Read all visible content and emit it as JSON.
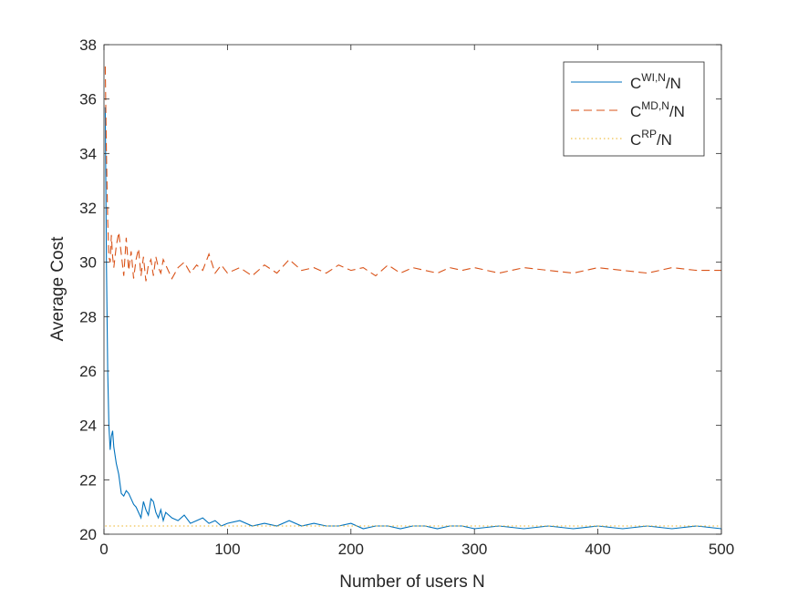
{
  "chart_data": {
    "type": "line",
    "title": "",
    "xlabel": "Number of users N",
    "ylabel": "Average Cost",
    "xlim": [
      0,
      500
    ],
    "ylim": [
      20,
      38
    ],
    "xticks": [
      0,
      100,
      200,
      300,
      400,
      500
    ],
    "yticks": [
      20,
      22,
      24,
      26,
      28,
      30,
      32,
      34,
      36,
      38
    ],
    "grid": false,
    "legend_position": "top-right",
    "series": [
      {
        "name": "C^{WI,N}/N",
        "legend": {
          "base": "C",
          "sup": "WI,N",
          "suffix": "/N"
        },
        "color": "#0072BD",
        "style": "solid",
        "x": [
          1,
          2,
          3,
          4,
          5,
          6,
          7,
          8,
          10,
          12,
          14,
          16,
          18,
          20,
          22,
          24,
          26,
          28,
          30,
          32,
          34,
          36,
          38,
          40,
          42,
          44,
          46,
          48,
          50,
          55,
          60,
          65,
          70,
          75,
          80,
          85,
          90,
          95,
          100,
          110,
          120,
          130,
          140,
          150,
          160,
          170,
          180,
          190,
          200,
          210,
          220,
          230,
          240,
          250,
          260,
          270,
          280,
          290,
          300,
          320,
          340,
          360,
          380,
          400,
          420,
          440,
          460,
          480,
          500
        ],
        "values": [
          35.7,
          30.0,
          26.0,
          24.0,
          23.1,
          23.6,
          23.8,
          23.2,
          22.6,
          22.2,
          21.5,
          21.4,
          21.6,
          21.5,
          21.3,
          21.1,
          21.0,
          20.8,
          20.6,
          21.2,
          20.9,
          20.7,
          21.3,
          21.2,
          20.8,
          20.6,
          20.9,
          20.5,
          20.8,
          20.6,
          20.5,
          20.7,
          20.4,
          20.5,
          20.6,
          20.4,
          20.5,
          20.3,
          20.4,
          20.5,
          20.3,
          20.4,
          20.3,
          20.5,
          20.3,
          20.4,
          20.3,
          20.3,
          20.4,
          20.2,
          20.3,
          20.3,
          20.2,
          20.3,
          20.3,
          20.2,
          20.3,
          20.3,
          20.2,
          20.3,
          20.2,
          20.3,
          20.2,
          20.3,
          20.2,
          20.3,
          20.2,
          20.3,
          20.2
        ]
      },
      {
        "name": "C^{MD,N}/N",
        "legend": {
          "base": "C",
          "sup": "MD,N",
          "suffix": "/N"
        },
        "color": "#D95319",
        "style": "dashed",
        "x": [
          1,
          2,
          3,
          4,
          5,
          6,
          7,
          8,
          10,
          12,
          14,
          16,
          18,
          20,
          22,
          24,
          26,
          28,
          30,
          32,
          34,
          36,
          38,
          40,
          42,
          44,
          46,
          48,
          50,
          55,
          60,
          65,
          70,
          75,
          80,
          85,
          90,
          95,
          100,
          110,
          120,
          130,
          140,
          150,
          160,
          170,
          180,
          190,
          200,
          210,
          220,
          230,
          240,
          250,
          260,
          270,
          280,
          290,
          300,
          320,
          340,
          360,
          380,
          400,
          420,
          440,
          460,
          480,
          500
        ],
        "values": [
          37.2,
          34.0,
          31.5,
          30.2,
          30.0,
          31.0,
          30.2,
          29.8,
          30.6,
          31.1,
          30.3,
          29.5,
          30.9,
          29.7,
          30.4,
          29.4,
          30.1,
          30.5,
          29.5,
          30.2,
          29.3,
          29.9,
          30.1,
          29.5,
          30.2,
          29.8,
          29.6,
          30.1,
          29.9,
          29.4,
          29.8,
          30.0,
          29.6,
          29.9,
          29.7,
          30.3,
          29.6,
          29.9,
          29.6,
          29.8,
          29.5,
          29.9,
          29.6,
          30.1,
          29.7,
          29.8,
          29.6,
          29.9,
          29.7,
          29.8,
          29.5,
          29.9,
          29.6,
          29.8,
          29.7,
          29.6,
          29.8,
          29.7,
          29.8,
          29.6,
          29.8,
          29.7,
          29.6,
          29.8,
          29.7,
          29.6,
          29.8,
          29.7,
          29.7
        ]
      },
      {
        "name": "C^{RP}/N",
        "legend": {
          "base": "C",
          "sup": "RP",
          "suffix": "/N"
        },
        "color": "#EDB120",
        "style": "dotted",
        "x": [
          1,
          500
        ],
        "values": [
          20.3,
          20.3
        ]
      }
    ]
  }
}
